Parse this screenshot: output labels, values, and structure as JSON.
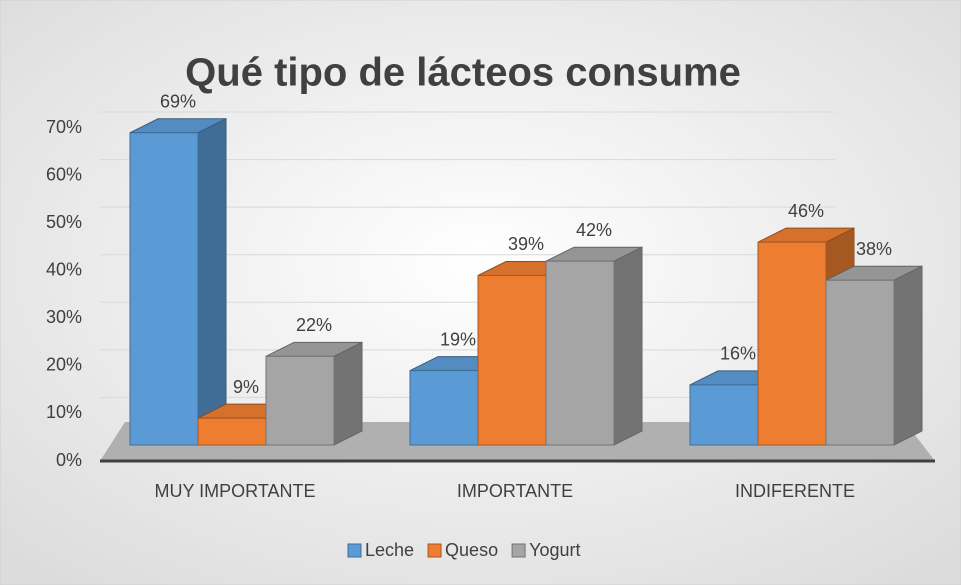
{
  "chart_data": {
    "type": "bar3d",
    "title": "Qué tipo de lácteos consume",
    "categories": [
      "MUY IMPORTANTE",
      "IMPORTANTE",
      "INDIFERENTE"
    ],
    "series": [
      {
        "name": "Leche",
        "color": "#5b9bd5",
        "values": [
          69,
          19,
          16
        ],
        "value_labels": [
          "69%",
          "19%",
          "16%"
        ]
      },
      {
        "name": "Queso",
        "color": "#ed7d31",
        "values": [
          9,
          39,
          46
        ],
        "value_labels": [
          "9%",
          "39%",
          "46%"
        ]
      },
      {
        "name": "Yogurt",
        "color": "#a5a5a5",
        "values": [
          22,
          42,
          38
        ],
        "value_labels": [
          "22%",
          "42%",
          "38%"
        ]
      }
    ],
    "ylim": [
      0,
      70
    ],
    "yticks": [
      {
        "value": 0,
        "label": "0%"
      },
      {
        "value": 10,
        "label": "10%"
      },
      {
        "value": 20,
        "label": "20%"
      },
      {
        "value": 30,
        "label": "30%"
      },
      {
        "value": 40,
        "label": "40%"
      },
      {
        "value": 50,
        "label": "50%"
      },
      {
        "value": 60,
        "label": "60%"
      },
      {
        "value": 70,
        "label": "70%"
      }
    ],
    "grid": true,
    "legend": "bottom"
  }
}
